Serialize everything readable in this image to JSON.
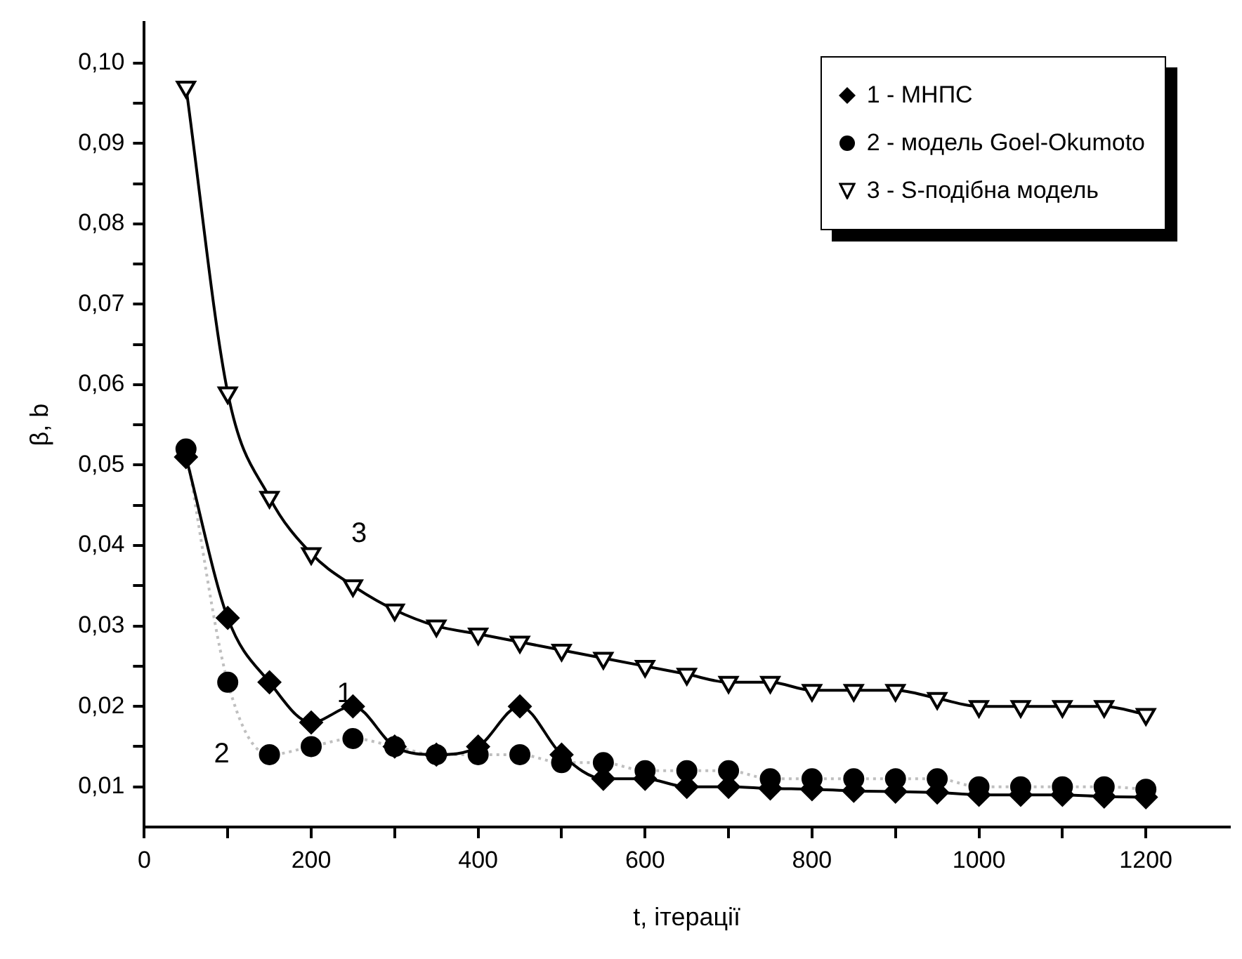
{
  "chart_data": {
    "type": "line",
    "xlabel": "t, ітерації",
    "ylabel": "β, b",
    "legend": "top right",
    "xlim": [
      0,
      1300
    ],
    "ylim": [
      0.005,
      0.105
    ],
    "xticks": [
      0,
      {
        "value": 100,
        "label": null
      },
      200,
      {
        "value": 300,
        "label": null
      },
      400,
      {
        "value": 500,
        "label": null
      },
      600,
      {
        "value": 700,
        "label": null
      },
      800,
      {
        "value": 900,
        "label": null
      },
      1000,
      {
        "value": 1100,
        "label": null
      },
      1200
    ],
    "yticks": [
      {
        "value": 0.01,
        "label": "0,01"
      },
      {
        "value": 0.015,
        "label": null
      },
      {
        "value": 0.02,
        "label": "0,02"
      },
      {
        "value": 0.025,
        "label": null
      },
      {
        "value": 0.03,
        "label": "0,03"
      },
      {
        "value": 0.035,
        "label": null
      },
      {
        "value": 0.04,
        "label": "0,04"
      },
      {
        "value": 0.045,
        "label": null
      },
      {
        "value": 0.05,
        "label": "0,05"
      },
      {
        "value": 0.055,
        "label": null
      },
      {
        "value": 0.06,
        "label": "0,06"
      },
      {
        "value": 0.065,
        "label": null
      },
      {
        "value": 0.07,
        "label": "0,07"
      },
      {
        "value": 0.075,
        "label": null
      },
      {
        "value": 0.08,
        "label": "0,08"
      },
      {
        "value": 0.085,
        "label": null
      },
      {
        "value": 0.09,
        "label": "0,09"
      },
      {
        "value": 0.095,
        "label": null
      },
      {
        "value": 0.1,
        "label": "0,10"
      }
    ],
    "x": [
      50,
      100,
      150,
      200,
      250,
      300,
      350,
      400,
      450,
      500,
      550,
      600,
      650,
      700,
      750,
      800,
      850,
      900,
      950,
      1000,
      1050,
      1100,
      1150,
      1200
    ],
    "series": [
      {
        "name": "1 - МНПС",
        "color": "#000000",
        "marker": "diamond",
        "line_style": "solid",
        "values": [
          0.051,
          0.031,
          0.023,
          0.018,
          0.02,
          0.015,
          0.014,
          0.015,
          0.02,
          0.014,
          0.011,
          0.011,
          0.01,
          0.01,
          0.0098,
          0.0097,
          0.0095,
          0.0094,
          0.0093,
          0.009,
          0.009,
          0.009,
          0.0088,
          0.0087
        ]
      },
      {
        "name": "2 - модель Goel-Okumoto",
        "color": "#000000",
        "marker": "circle",
        "line_style": "dotted",
        "values": [
          0.052,
          0.023,
          0.014,
          0.015,
          0.016,
          0.015,
          0.014,
          0.014,
          0.014,
          0.013,
          0.013,
          0.012,
          0.012,
          0.012,
          0.011,
          0.011,
          0.011,
          0.011,
          0.011,
          0.01,
          0.01,
          0.01,
          0.01,
          0.0097
        ]
      },
      {
        "name": "3 - S-подібна модель",
        "color": "#000000",
        "marker": "triangle",
        "line_style": "solid",
        "values": [
          0.097,
          0.059,
          0.046,
          0.039,
          0.035,
          0.032,
          0.03,
          0.029,
          0.028,
          0.027,
          0.026,
          0.025,
          0.024,
          0.023,
          0.023,
          0.022,
          0.022,
          0.022,
          0.021,
          0.02,
          0.02,
          0.02,
          0.02,
          0.019
        ]
      }
    ],
    "annotations": [
      {
        "text": "1",
        "x": 240,
        "y": 0.0215
      },
      {
        "text": "2",
        "x": 150,
        "y": 0.014
      },
      {
        "text": "3",
        "x": 200,
        "y": 0.039
      }
    ]
  }
}
